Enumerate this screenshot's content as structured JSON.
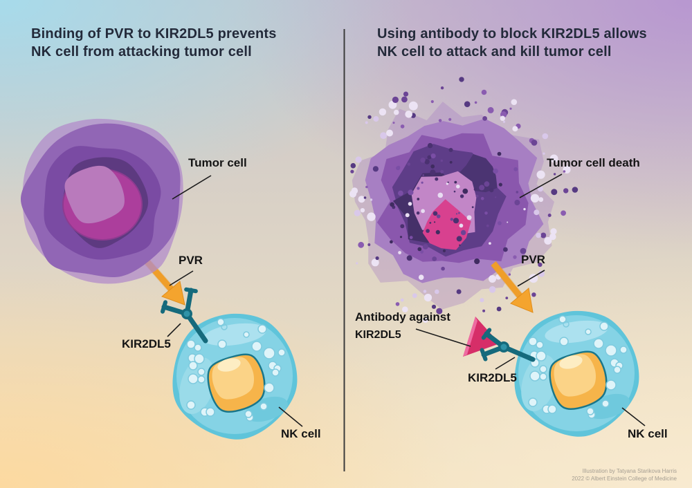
{
  "panels": {
    "left": {
      "title_line1": "Binding of PVR to KIR2DL5 prevents",
      "title_line2": "NK cell from attacking tumor cell",
      "labels": {
        "tumor": "Tumor cell",
        "pvr": "PVR",
        "kir2dl5": "KIR2DL5",
        "nk": "NK cell"
      }
    },
    "right": {
      "title_line1": "Using antibody to block KIR2DL5 allows",
      "title_line2": "NK cell to attack and kill tumor cell",
      "labels": {
        "tumor": "Tumor cell death",
        "pvr": "PVR",
        "antibody_line1": "Antibody against",
        "antibody_line2": "KIR2DL5",
        "kir2dl5": "KIR2DL5",
        "nk": "NK cell"
      }
    }
  },
  "credit": {
    "line1": "Illustration by Tatyana Starikova Harris",
    "line2": "2022 © Albert Einstein College of Medicine"
  },
  "colors": {
    "bg_top_left": "#a7dbeb",
    "bg_top_right": "#b897d0",
    "bg_bottom_left": "#fcd9a0",
    "bg_bottom_right": "#f8ead0",
    "bg_mid": "#ddd4c6",
    "tumor_outer": "#9166b5",
    "tumor_mid": "#7a4ba3",
    "tumor_dark": "#5d3a80",
    "tumor_halo": "#b18bca",
    "nucleus_light": "#b97abc",
    "nucleus_magenta": "#ac3e9c",
    "dying_outer": "#a77fc3",
    "dying_mid": "#8a57ad",
    "dying_dark": "#5e3d88",
    "dying_darker": "#453069",
    "dying_nucleus_light": "#c286c7",
    "dying_nucleus_magenta": "#d8418f",
    "nk_rim": "#5fc4da",
    "nk_body": "#85d3e5",
    "nk_patch_light": "#ace1ef",
    "nk_bubble_fill": "#dff4f9",
    "nk_bubble_stroke": "#7fcade",
    "nk_nucleus": "#f6b44a",
    "nk_nucleus_light": "#fbd387",
    "nk_nucleus_cream": "#fdedc3",
    "nk_nucleus_outline": "#19768a",
    "receptor_teal": "#156a7c",
    "receptor_joint_inner": "#2f93a8",
    "arrow_orange": "#f4a42e",
    "arrow_edge": "#e18d1b",
    "antibody_pink": "#d62e68",
    "antibody_highlight": "#ee6ba1",
    "divider": "#3b3b3b",
    "pointer_line": "#1c1c1c",
    "title_text": "#232a3a",
    "label_text": "#141414",
    "credit_text": "#a59e92"
  }
}
